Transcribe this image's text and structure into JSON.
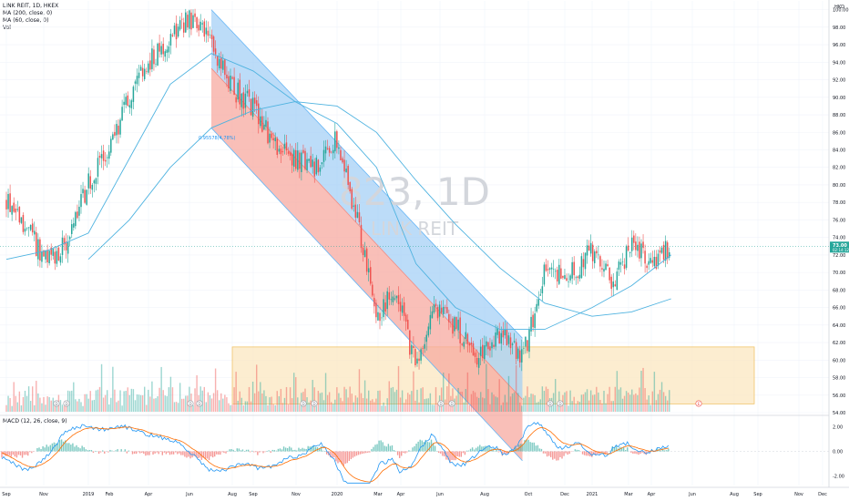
{
  "legend": {
    "symbol": "LINK REIT, 1D, HKEX",
    "ma200": "MA (200, close, 0)",
    "ma60": "MA (60, close, 0)",
    "vol": "Vol",
    "macd": "MACD (12, 26, close, 9)"
  },
  "watermark": {
    "line1": "823, 1D",
    "line2": "LINK REIT"
  },
  "currency": "HKD",
  "channel_label": "0.95578(4.78%)",
  "colors": {
    "up": "#26a69a",
    "down": "#ef5350",
    "ma": "#4fb3e0",
    "channel_upper_fill": "#9fcdf5",
    "channel_lower_fill": "#f7a9a0",
    "zone_fill": "#fbe7c0",
    "macd_line": "#2196f3",
    "signal_line": "#ff6d00",
    "price_tag": "#26a69a"
  },
  "chart_data": [
    {
      "type": "candlestick",
      "title": "",
      "x_ticks": [
        "Sep",
        "Nov",
        "2019",
        "Feb",
        "Apr",
        "Jun",
        "Aug",
        "Sep",
        "Nov",
        "2020",
        "Mar",
        "Apr",
        "Jun",
        "Aug",
        "Oct",
        "Dec",
        "2021",
        "Mar",
        "Apr",
        "Jun",
        "Aug",
        "Sep",
        "Nov",
        "Dec"
      ],
      "y_ticks": [
        100.0,
        98.0,
        96.0,
        94.0,
        92.0,
        90.0,
        88.0,
        86.0,
        84.0,
        82.0,
        80.0,
        78.0,
        76.0,
        74.0,
        72.0,
        70.0,
        68.0,
        66.0,
        64.0,
        62.0,
        60.0,
        58.0,
        56.0,
        54.0
      ],
      "ylim": [
        54,
        101
      ],
      "last_price": "73.00",
      "last_price_sub": "02:14:12",
      "close_path": [
        [
          "2018-09",
          78.5
        ],
        [
          "2018-10",
          75.0
        ],
        [
          "2018-11",
          71.0
        ],
        [
          "2018-12",
          73.5
        ],
        [
          "2019-01",
          80.0
        ],
        [
          "2019-02",
          84.0
        ],
        [
          "2019-03",
          90.0
        ],
        [
          "2019-04",
          94.0
        ],
        [
          "2019-05",
          97.0
        ],
        [
          "2019-06",
          99.0
        ],
        [
          "2019-07",
          96.0
        ],
        [
          "2019-08",
          91.0
        ],
        [
          "2019-09",
          89.0
        ],
        [
          "2019-10",
          84.5
        ],
        [
          "2019-11",
          83.0
        ],
        [
          "2019-12",
          82.0
        ],
        [
          "2020-01",
          85.5
        ],
        [
          "2020-02",
          76.0
        ],
        [
          "2020-03",
          65.0
        ],
        [
          "2020-04",
          68.0
        ],
        [
          "2020-05",
          59.0
        ],
        [
          "2020-06",
          66.0
        ],
        [
          "2020-07",
          64.0
        ],
        [
          "2020-08",
          60.0
        ],
        [
          "2020-09",
          63.0
        ],
        [
          "2020-10",
          60.0
        ],
        [
          "2020-11",
          70.0
        ],
        [
          "2020-12",
          69.5
        ],
        [
          "2021-01",
          72.5
        ],
        [
          "2021-02",
          69.0
        ],
        [
          "2021-03",
          73.0
        ],
        [
          "2021-04",
          71.0
        ],
        [
          "2021-05",
          73.0
        ]
      ],
      "ma60_path": [
        [
          "2018-09",
          71.5
        ],
        [
          "2018-11",
          72.5
        ],
        [
          "2019-01",
          74.5
        ],
        [
          "2019-03",
          83.0
        ],
        [
          "2019-05",
          91.5
        ],
        [
          "2019-07",
          95.0
        ],
        [
          "2019-09",
          93.0
        ],
        [
          "2019-11",
          89.5
        ],
        [
          "2020-01",
          87.0
        ],
        [
          "2020-03",
          82.0
        ],
        [
          "2020-05",
          71.0
        ],
        [
          "2020-07",
          66.0
        ],
        [
          "2020-09",
          63.5
        ],
        [
          "2020-11",
          63.5
        ],
        [
          "2021-01",
          66.0
        ],
        [
          "2021-03",
          68.5
        ],
        [
          "2021-05",
          72.0
        ]
      ],
      "ma200_path": [
        [
          "2019-01",
          71.5
        ],
        [
          "2019-03",
          76.0
        ],
        [
          "2019-05",
          82.0
        ],
        [
          "2019-07",
          86.5
        ],
        [
          "2019-09",
          88.5
        ],
        [
          "2019-11",
          89.5
        ],
        [
          "2020-01",
          89.0
        ],
        [
          "2020-03",
          86.0
        ],
        [
          "2020-05",
          80.5
        ],
        [
          "2020-07",
          75.5
        ],
        [
          "2020-09",
          70.5
        ],
        [
          "2020-11",
          66.5
        ],
        [
          "2021-01",
          65.0
        ],
        [
          "2021-03",
          65.5
        ],
        [
          "2021-05",
          67.0
        ]
      ],
      "channel": {
        "upper_line": [
          [
            "2019-07",
            100.0
          ],
          [
            "2020-10",
            62.5
          ]
        ],
        "mid_line": [
          [
            "2019-07",
            93.3
          ],
          [
            "2020-10",
            55.5
          ]
        ],
        "lower_line": [
          [
            "2019-07",
            86.5
          ],
          [
            "2020-10",
            48.5
          ]
        ]
      },
      "zone": {
        "x": [
          "2019-08",
          "2021-09"
        ],
        "y": [
          55.0,
          61.5
        ]
      }
    },
    {
      "type": "line",
      "title": "",
      "y_ticks": [
        2.0,
        0.0,
        -2.0
      ],
      "ylim": [
        -2.8,
        2.8
      ],
      "series": []
    }
  ]
}
